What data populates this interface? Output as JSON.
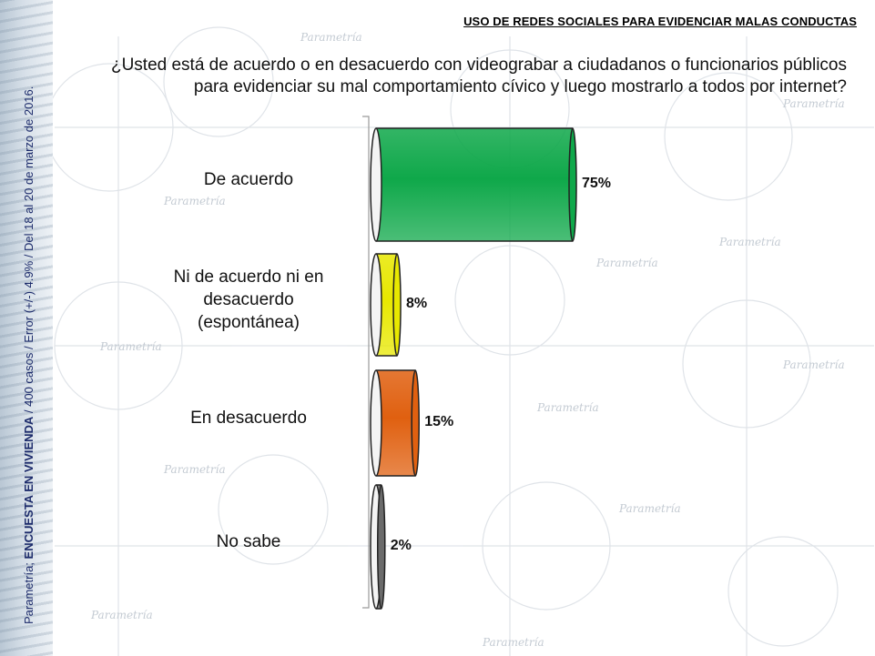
{
  "header": {
    "title": "USO DE REDES SOCIALES PARA EVIDENCIAR MALAS CONDUCTAS"
  },
  "question": {
    "line1": "¿Usted está de acuerdo o en desacuerdo con videograbar a ciudadanos o funcionarios públicos",
    "line2": "para evidenciar su mal comportamiento cívico y luego mostrarlo a todos por internet?"
  },
  "source": {
    "prefix": "Parametría; ",
    "survey": "ENCUESTA EN VIVIENDA",
    "details": " / 400 casos / Error (+/-) 4.9% / Del 18 al 20 de marzo de 2016."
  },
  "watermark": "Parametría",
  "chart_data": {
    "type": "bar",
    "orientation": "horizontal",
    "categories": [
      "De acuerdo",
      "Ni de acuerdo ni en desacuerdo (espontánea)",
      "En desacuerdo",
      "No sabe"
    ],
    "category_lines": [
      [
        "De acuerdo"
      ],
      [
        "Ni de acuerdo ni en",
        "desacuerdo",
        "(espontánea)"
      ],
      [
        "En desacuerdo"
      ],
      [
        "No sabe"
      ]
    ],
    "values": [
      75,
      8,
      15,
      2
    ],
    "value_labels": [
      "75%",
      "8%",
      "15%",
      "2%"
    ],
    "colors": [
      "#0fa84a",
      "#e8e800",
      "#e06010",
      "#6b6b6b"
    ],
    "xlim": [
      0,
      100
    ],
    "grid": false,
    "legend": "none"
  }
}
